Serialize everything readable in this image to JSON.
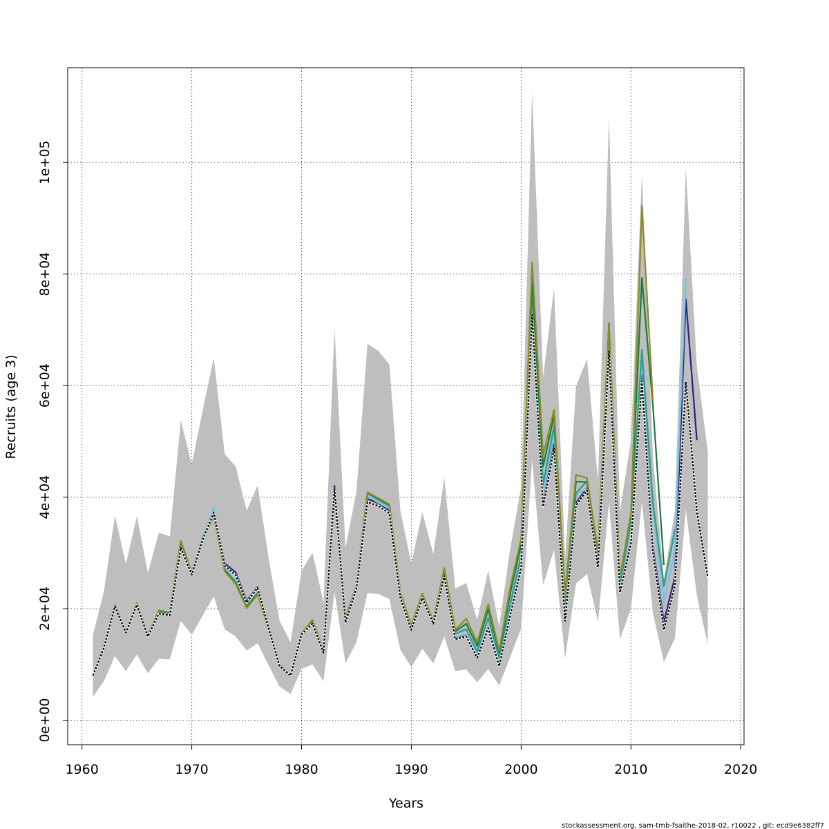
{
  "chart_data": {
    "type": "line",
    "title": "",
    "xlabel": "Years",
    "ylabel": "Recruits (age 3)",
    "xlim": [
      1958.7,
      2020.3
    ],
    "ylim": [
      -4400,
      117000
    ],
    "x_ticks": [
      1960,
      1970,
      1980,
      1990,
      2000,
      2010,
      2020
    ],
    "x_tick_labels": [
      "1960",
      "1970",
      "1980",
      "1990",
      "2000",
      "2010",
      "2020"
    ],
    "y_ticks": [
      0,
      20000,
      40000,
      60000,
      80000,
      100000
    ],
    "y_tick_labels": [
      "0e+00",
      "2e+04",
      "4e+04",
      "6e+04",
      "8e+04",
      "1e+05"
    ],
    "grid": true,
    "colors": {
      "band": "#bebebe",
      "base": "#000000",
      "series": [
        "#2e1e7e",
        "#6cc5e8",
        "#2a9c87",
        "#1b7a3a",
        "#8c8c23"
      ]
    },
    "confidence_band": {
      "x": [
        1961,
        1962,
        1963,
        1964,
        1965,
        1966,
        1967,
        1968,
        1969,
        1970,
        1971,
        1972,
        1973,
        1974,
        1975,
        1976,
        1977,
        1978,
        1979,
        1980,
        1981,
        1982,
        1983,
        1984,
        1985,
        1986,
        1987,
        1988,
        1989,
        1990,
        1991,
        1992,
        1993,
        1994,
        1995,
        1996,
        1997,
        1998,
        1999,
        2000,
        2001,
        2002,
        2003,
        2004,
        2005,
        2006,
        2007,
        2008,
        2009,
        2010,
        2011,
        2012,
        2013,
        2014,
        2015,
        2016,
        2017
      ],
      "lower": [
        4200,
        7000,
        11500,
        8800,
        11800,
        8400,
        11000,
        10900,
        17800,
        15300,
        18800,
        22200,
        16300,
        15000,
        12500,
        13800,
        9800,
        6000,
        4700,
        9200,
        10000,
        7000,
        23000,
        10200,
        14000,
        22800,
        22600,
        21700,
        12600,
        9500,
        12800,
        10200,
        15000,
        8800,
        9100,
        6800,
        9200,
        6200,
        11300,
        16500,
        46700,
        24200,
        30600,
        11100,
        24500,
        26200,
        17600,
        39000,
        14500,
        20000,
        39200,
        19200,
        10400,
        14700,
        37700,
        22400,
        13600
      ],
      "upper": [
        15300,
        23100,
        36700,
        28000,
        36600,
        26400,
        33600,
        33000,
        53800,
        45900,
        55600,
        65000,
        47700,
        45500,
        37600,
        42100,
        29000,
        17800,
        14000,
        26800,
        30000,
        21100,
        70400,
        30900,
        41000,
        67500,
        66200,
        63800,
        37500,
        28100,
        37300,
        29800,
        43500,
        23600,
        24600,
        18000,
        26800,
        16800,
        30700,
        41800,
        112700,
        61600,
        77500,
        29000,
        59900,
        64800,
        42900,
        108300,
        37400,
        50200,
        98000,
        47300,
        25400,
        37500,
        99000,
        63500,
        48100
      ]
    },
    "series": [
      {
        "x": [
          1961,
          1962,
          1963,
          1964,
          1965,
          1966,
          1967,
          1968,
          1969,
          1970,
          1971,
          1972,
          1973,
          1974,
          1975,
          1976,
          1977,
          1978,
          1979,
          1980,
          1981,
          1982,
          1983,
          1984,
          1985,
          1986,
          1987,
          1988,
          1989,
          1990,
          1991,
          1992,
          1993,
          1994,
          1995,
          1996,
          1997,
          1998,
          1999,
          2000,
          2001,
          2002,
          2003,
          2004,
          2005,
          2006,
          2007,
          2008,
          2009,
          2010,
          2011,
          2012,
          2013,
          2014,
          2015,
          2016,
          2017
        ],
        "values": [
          8000,
          13000,
          20400,
          15700,
          20700,
          15000,
          19100,
          18800,
          30900,
          26100,
          32400,
          37200,
          27700,
          26000,
          21100,
          23700,
          16500,
          9700,
          8000,
          15400,
          17300,
          12100,
          41500,
          17500,
          23700,
          39100,
          38400,
          37100,
          21900,
          16200,
          21900,
          17300,
          25900,
          14500,
          15000,
          11200,
          16500,
          9700,
          18800,
          27300,
          72700,
          38300,
          48800,
          17800,
          38500,
          41200,
          27400,
          66300,
          22900,
          31700,
          60800,
          30200,
          16200,
          24100,
          60700,
          37400,
          25600
        ]
      },
      {
        "x": [
          1961,
          1962,
          1963,
          1964,
          1965,
          1966,
          1967,
          1968,
          1969,
          1970,
          1971,
          1972,
          1973,
          1974,
          1975,
          1976,
          1977,
          1978,
          1979,
          1980,
          1981,
          1982,
          1983,
          1984,
          1985,
          1986,
          1987,
          1988,
          1989,
          1990,
          1991,
          1992,
          1993,
          1994,
          1995,
          1996,
          1997,
          1998,
          1999,
          2000,
          2001,
          2002,
          2003,
          2004,
          2005,
          2006,
          2007,
          2008,
          2009,
          2010,
          2011,
          2012,
          2013,
          2014,
          2015,
          2016
        ],
        "values": [
          8100,
          13100,
          20500,
          15800,
          20800,
          15200,
          19300,
          19000,
          31100,
          26300,
          32600,
          37400,
          28100,
          26500,
          21400,
          23900,
          16700,
          9800,
          8000,
          15500,
          17400,
          12200,
          42000,
          17800,
          23800,
          39700,
          38900,
          37600,
          22200,
          16300,
          22100,
          17400,
          26200,
          14700,
          15200,
          11300,
          16800,
          9900,
          19000,
          27600,
          73500,
          38800,
          49600,
          18100,
          39000,
          41600,
          27700,
          67300,
          23200,
          32100,
          61800,
          31100,
          17600,
          25700,
          75500,
          50200
        ]
      },
      {
        "x": [
          1961,
          1962,
          1963,
          1964,
          1965,
          1966,
          1967,
          1968,
          1969,
          1970,
          1971,
          1972,
          1973,
          1974,
          1975,
          1976,
          1977,
          1978,
          1979,
          1980,
          1981,
          1982,
          1983,
          1984,
          1985,
          1986,
          1987,
          1988,
          1989,
          1990,
          1991,
          1992,
          1993,
          1994,
          1995,
          1996,
          1997,
          1998,
          1999,
          2000,
          2001,
          2002,
          2003,
          2004,
          2005,
          2006,
          2007,
          2008,
          2009,
          2010,
          2011,
          2012,
          2013,
          2014,
          2015
        ],
        "values": [
          8100,
          13000,
          20600,
          15700,
          20900,
          14900,
          19400,
          19000,
          31600,
          26000,
          32900,
          38000,
          27200,
          25200,
          20600,
          23400,
          16400,
          9800,
          7900,
          15400,
          17600,
          11900,
          40800,
          17400,
          23800,
          40200,
          39000,
          37900,
          22000,
          15900,
          22000,
          17200,
          26100,
          14900,
          15400,
          11800,
          16800,
          10600,
          19900,
          28300,
          75200,
          41000,
          51200,
          19200,
          40600,
          41400,
          29000,
          69000,
          23900,
          35200,
          64400,
          37600,
          21000,
          30600,
          79200
        ]
      },
      {
        "x": [
          1961,
          1962,
          1963,
          1964,
          1965,
          1966,
          1967,
          1968,
          1969,
          1970,
          1971,
          1972,
          1973,
          1974,
          1975,
          1976,
          1977,
          1978,
          1979,
          1980,
          1981,
          1982,
          1983,
          1984,
          1985,
          1986,
          1987,
          1988,
          1989,
          1990,
          1991,
          1992,
          1993,
          1994,
          1995,
          1996,
          1997,
          1998,
          1999,
          2000,
          2001,
          2002,
          2003,
          2004,
          2005,
          2006,
          2007,
          2008,
          2009,
          2010,
          2011,
          2012,
          2013,
          2014
        ],
        "values": [
          8100,
          13000,
          20600,
          15700,
          20900,
          15000,
          19500,
          19100,
          31800,
          26200,
          32700,
          36900,
          27000,
          24700,
          20400,
          22800,
          16500,
          9900,
          8000,
          15500,
          17900,
          12100,
          40200,
          18000,
          24000,
          40700,
          39500,
          38400,
          22400,
          16700,
          22500,
          17600,
          26800,
          15500,
          16300,
          12300,
          18400,
          11300,
          20800,
          29500,
          76800,
          42300,
          52800,
          20200,
          40700,
          42900,
          28700,
          70400,
          24400,
          35500,
          66400,
          39000,
          24000,
          34200
        ]
      },
      {
        "x": [
          1961,
          1962,
          1963,
          1964,
          1965,
          1966,
          1967,
          1968,
          1969,
          1970,
          1971,
          1972,
          1973,
          1974,
          1975,
          1976,
          1977,
          1978,
          1979,
          1980,
          1981,
          1982,
          1983,
          1984,
          1985,
          1986,
          1987,
          1988,
          1989,
          1990,
          1991,
          1992,
          1993,
          1994,
          1995,
          1996,
          1997,
          1998,
          1999,
          2000,
          2001,
          2002,
          2003,
          2004,
          2005,
          2006,
          2007,
          2008,
          2009,
          2010,
          2011,
          2012,
          2013
        ],
        "values": [
          8100,
          13000,
          20700,
          15800,
          21000,
          15100,
          19600,
          19200,
          32100,
          26400,
          32600,
          36800,
          26900,
          24600,
          20300,
          22600,
          16400,
          9800,
          7900,
          15600,
          17800,
          12200,
          40700,
          18300,
          24000,
          40800,
          39700,
          38600,
          22700,
          16900,
          22600,
          17700,
          27100,
          15900,
          17300,
          13300,
          19900,
          12200,
          22700,
          31500,
          79400,
          45500,
          54700,
          22800,
          42800,
          42700,
          29700,
          71200,
          25500,
          37000,
          79300,
          56400,
          27800
        ]
      },
      {
        "x": [
          1961,
          1962,
          1963,
          1964,
          1965,
          1966,
          1967,
          1968,
          1969,
          1970,
          1971,
          1972,
          1973,
          1974,
          1975,
          1976,
          1977,
          1978,
          1979,
          1980,
          1981,
          1982,
          1983,
          1984,
          1985,
          1986,
          1987,
          1988,
          1989,
          1990,
          1991,
          1992,
          1993,
          1994,
          1995,
          1996,
          1997,
          1998,
          1999,
          2000,
          2001,
          2002,
          2003,
          2004,
          2005,
          2006,
          2007,
          2008,
          2009,
          2010,
          2011,
          2012
        ],
        "values": [
          8100,
          13000,
          20700,
          15800,
          21000,
          15200,
          19700,
          19300,
          32200,
          26500,
          32500,
          36600,
          26700,
          24400,
          20100,
          22500,
          16300,
          9800,
          7900,
          15600,
          18000,
          12400,
          41000,
          18100,
          23900,
          40900,
          39800,
          38700,
          22800,
          17000,
          22700,
          17800,
          27300,
          16200,
          18200,
          14000,
          20800,
          12500,
          23800,
          32500,
          82100,
          47500,
          55700,
          22300,
          44000,
          43400,
          30300,
          71000,
          25500,
          36600,
          92200,
          57400
        ]
      }
    ]
  },
  "footer": {
    "text": "stockassessment.org, sam-tmb-fsaithe-2018-02, r10022 , git: ecd9e6382ff7"
  }
}
